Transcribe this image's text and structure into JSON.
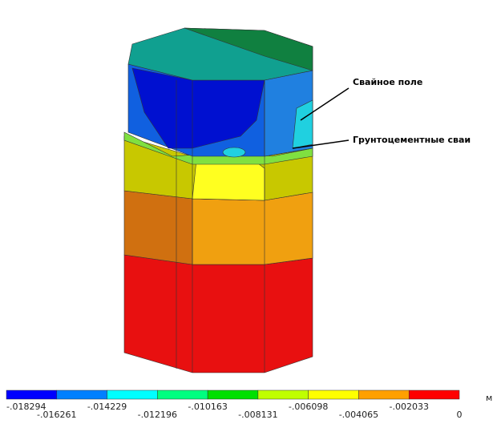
{
  "annotations": [
    "Свайное поле",
    "Грунтоцементные сваи"
  ],
  "legend": {
    "unit": "м",
    "labels": [
      "-.018294",
      "-.016261",
      "-.014229",
      "-.012196",
      "-.010163",
      "-.008131",
      "-.006098",
      "-.004065",
      "-.002033",
      "0"
    ],
    "colors": [
      "#0000ff",
      "#0080ff",
      "#00ffff",
      "#00ff80",
      "#00e000",
      "#c0ff00",
      "#ffff00",
      "#ffa000",
      "#ff0000"
    ]
  }
}
